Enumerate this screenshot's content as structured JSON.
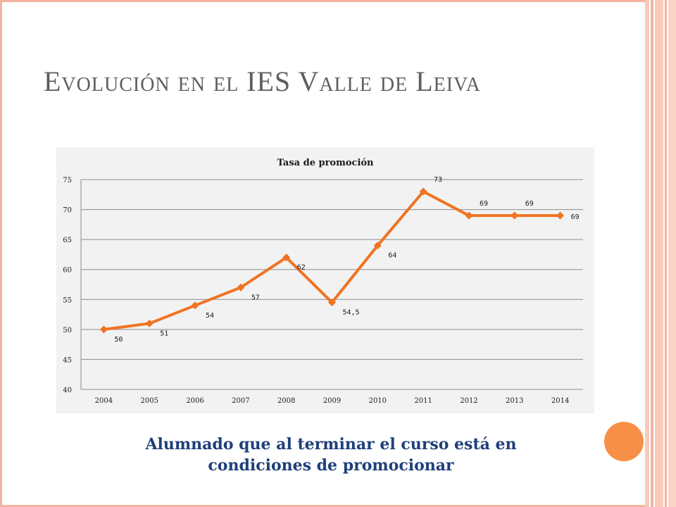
{
  "slide": {
    "title": "Evolución en el IES Valle de Leiva",
    "caption_line1": "Alumnado que al terminar el curso está en",
    "caption_line2": "condiciones de promocionar"
  },
  "colors": {
    "accent_line": "#ef7422",
    "frame": "#f4b3a2",
    "caption_text": "#1f3f7a",
    "title_text": "#5e5e5e",
    "decor_dot": "#f78f47"
  },
  "chart_data": {
    "type": "line",
    "title": "Tasa de promoción",
    "xlabel": "",
    "ylabel": "",
    "categories": [
      "2004",
      "2005",
      "2006",
      "2007",
      "2008",
      "2009",
      "2010",
      "2011",
      "2012",
      "2013",
      "2014"
    ],
    "values": [
      50,
      51,
      54,
      57,
      62,
      54.5,
      64,
      73,
      69,
      69,
      69
    ],
    "data_labels": [
      "50",
      "51",
      "54",
      "57",
      "62",
      "54,5",
      "64",
      "73",
      "69",
      "69",
      "69"
    ],
    "ylim": [
      40,
      75
    ],
    "yticks": [
      40,
      45,
      50,
      55,
      60,
      65,
      70,
      75
    ],
    "grid": true,
    "marker": "diamond",
    "legend": "none"
  }
}
